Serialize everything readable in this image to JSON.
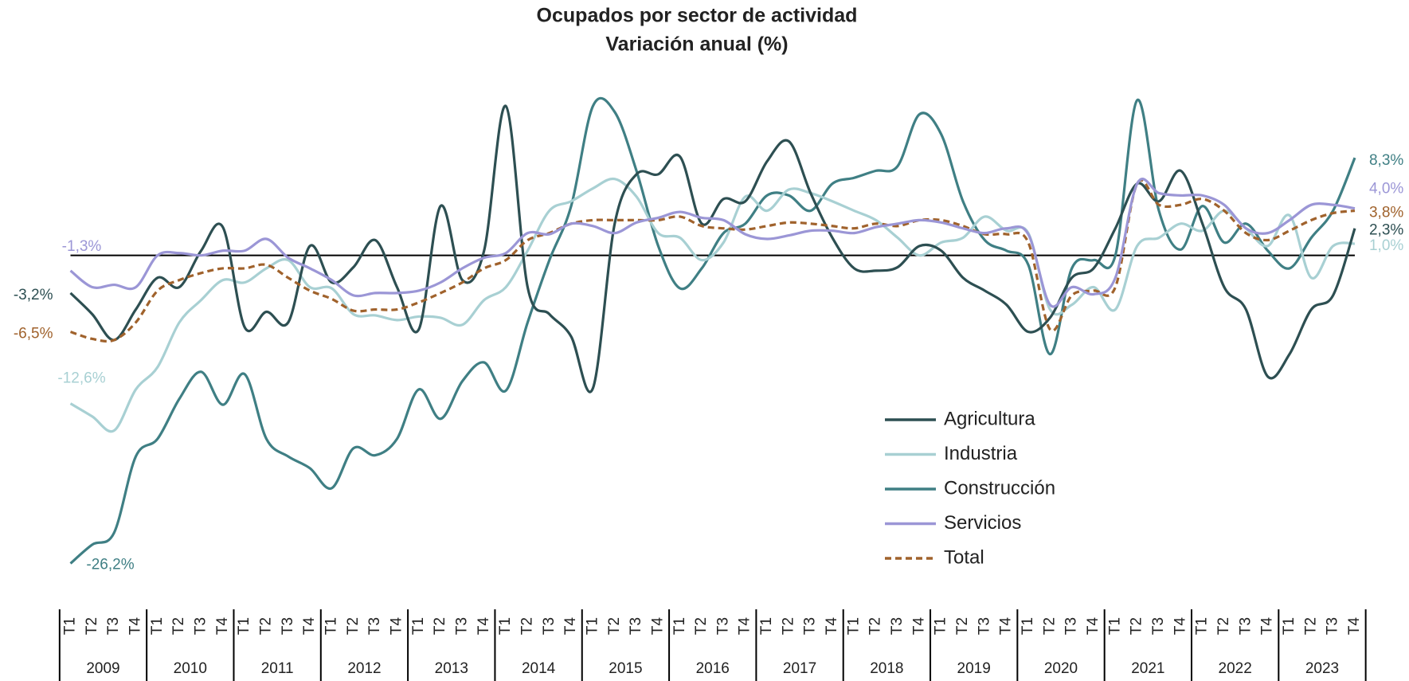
{
  "chart_data": {
    "type": "line",
    "title": "Ocupados por sector de actividad",
    "subtitle": "Variación anual (%)",
    "categories": [
      "T1",
      "T2",
      "T3",
      "T4",
      "T1",
      "T2",
      "T3",
      "T4",
      "T1",
      "T2",
      "T3",
      "T4",
      "T1",
      "T2",
      "T3",
      "T4",
      "T1",
      "T2",
      "T3",
      "T4",
      "T1",
      "T2",
      "T3",
      "T4",
      "T1",
      "T2",
      "T3",
      "T4",
      "T1",
      "T2",
      "T3",
      "T4",
      "T1",
      "T2",
      "T3",
      "T4",
      "T1",
      "T2",
      "T3",
      "T4",
      "T1",
      "T2",
      "T3",
      "T4",
      "T1",
      "T2",
      "T3",
      "T4",
      "T1",
      "T2",
      "T3",
      "T4",
      "T1",
      "T2",
      "T3",
      "T4",
      "T1",
      "T2",
      "T3",
      "T4"
    ],
    "years": [
      "2009",
      "2010",
      "2011",
      "2012",
      "2013",
      "2014",
      "2015",
      "2016",
      "2017",
      "2018",
      "2019",
      "2020",
      "2021",
      "2022",
      "2023"
    ],
    "ylim": [
      -28,
      14
    ],
    "legend": "lower right",
    "series": [
      {
        "name": "Agricultura",
        "color": "#2d4f52",
        "dashed": false,
        "values": [
          -3.2,
          -5.0,
          -7.2,
          -4.6,
          -1.9,
          -2.7,
          0.4,
          2.4,
          -6.1,
          -4.8,
          -5.7,
          0.8,
          -2.3,
          -1.0,
          1.3,
          -2.7,
          -6.3,
          4.2,
          -2.1,
          0.4,
          12.7,
          -2.7,
          -5.0,
          -6.9,
          -11.3,
          2.7,
          6.9,
          6.9,
          8.4,
          2.7,
          4.8,
          4.6,
          8.0,
          9.7,
          5.3,
          1.5,
          -1.1,
          -1.3,
          -1.0,
          0.8,
          0.4,
          -1.9,
          -3.0,
          -4.2,
          -6.5,
          -5.3,
          -1.9,
          -1.1,
          2.3,
          6.1,
          4.6,
          7.2,
          2.7,
          -2.7,
          -4.6,
          -10.3,
          -8.4,
          -4.6,
          -3.4,
          2.3
        ],
        "value_labels": [
          "-3,2%",
          null,
          null,
          null,
          null,
          null,
          null,
          null,
          null,
          null,
          null,
          null,
          null,
          null,
          null,
          null,
          null,
          null,
          null,
          null,
          null,
          null,
          null,
          null,
          null,
          null,
          null,
          null,
          null,
          null,
          null,
          null,
          null,
          null,
          null,
          null,
          null,
          null,
          null,
          null,
          null,
          null,
          null,
          null,
          null,
          null,
          null,
          null,
          null,
          null,
          null,
          null,
          null,
          null,
          null,
          null,
          null,
          null,
          null,
          "2,3%"
        ]
      },
      {
        "name": "Industria",
        "color": "#a8d0d3",
        "dashed": false,
        "values": [
          -12.6,
          -13.7,
          -14.9,
          -11.4,
          -9.5,
          -5.7,
          -3.8,
          -2.1,
          -2.3,
          -1.1,
          -0.4,
          -2.7,
          -2.8,
          -5.0,
          -5.1,
          -5.5,
          -5.2,
          -5.3,
          -5.9,
          -3.8,
          -2.7,
          0.4,
          3.8,
          4.6,
          5.7,
          6.5,
          5.0,
          1.9,
          1.5,
          -0.4,
          1.1,
          5.0,
          3.8,
          5.6,
          5.3,
          4.6,
          3.8,
          3.0,
          1.5,
          0.0,
          1.1,
          1.5,
          3.3,
          2.1,
          1.9,
          -4.6,
          -4.2,
          -2.7,
          -4.6,
          0.8,
          1.5,
          2.7,
          2.1,
          3.8,
          2.3,
          0.8,
          3.4,
          -1.9,
          0.8,
          1.0
        ],
        "value_labels": [
          "-12,6%",
          null,
          null,
          null,
          null,
          null,
          null,
          null,
          null,
          null,
          null,
          null,
          null,
          null,
          null,
          null,
          null,
          null,
          null,
          null,
          null,
          null,
          null,
          null,
          null,
          null,
          null,
          null,
          null,
          null,
          null,
          null,
          null,
          null,
          null,
          null,
          null,
          null,
          null,
          null,
          null,
          null,
          null,
          null,
          null,
          null,
          null,
          null,
          null,
          null,
          null,
          null,
          null,
          null,
          null,
          null,
          null,
          null,
          null,
          "1,0%"
        ]
      },
      {
        "name": "Construcción",
        "color": "#3f7f84",
        "dashed": false,
        "values": [
          -26.2,
          -24.6,
          -23.6,
          -17.1,
          -15.6,
          -12.2,
          -9.9,
          -12.7,
          -10.1,
          -15.6,
          -17.1,
          -18.1,
          -19.8,
          -16.4,
          -17.0,
          -15.6,
          -11.4,
          -13.9,
          -10.7,
          -9.1,
          -11.5,
          -5.7,
          -0.4,
          4.2,
          12.7,
          12.2,
          7.2,
          0.8,
          -2.8,
          -1.1,
          1.9,
          2.7,
          5.1,
          5.1,
          3.8,
          6.1,
          6.6,
          7.2,
          7.6,
          12.0,
          10.3,
          4.6,
          1.3,
          0.4,
          -0.8,
          -8.4,
          -1.1,
          -0.4,
          0.0,
          13.2,
          3.8,
          0.5,
          4.2,
          1.1,
          2.7,
          0.4,
          -1.1,
          1.5,
          3.8,
          8.3
        ],
        "value_labels": [
          "-26,2%",
          null,
          null,
          null,
          null,
          null,
          null,
          null,
          null,
          null,
          null,
          null,
          null,
          null,
          null,
          null,
          null,
          null,
          null,
          null,
          null,
          null,
          null,
          null,
          null,
          null,
          null,
          null,
          null,
          null,
          null,
          null,
          null,
          null,
          null,
          null,
          null,
          null,
          null,
          null,
          null,
          null,
          null,
          null,
          null,
          null,
          null,
          null,
          null,
          null,
          null,
          null,
          null,
          null,
          null,
          null,
          null,
          null,
          null,
          "8,3%"
        ]
      },
      {
        "name": "Servicios",
        "color": "#9b96d6",
        "dashed": false,
        "values": [
          -1.3,
          -2.7,
          -2.5,
          -2.7,
          0.0,
          0.2,
          0.0,
          0.4,
          0.4,
          1.4,
          -0.2,
          -1.1,
          -2.1,
          -3.4,
          -3.2,
          -3.2,
          -3.0,
          -2.3,
          -1.1,
          -0.2,
          0.2,
          1.9,
          1.8,
          2.7,
          2.5,
          1.9,
          2.8,
          3.2,
          3.7,
          3.2,
          3.0,
          1.8,
          1.4,
          1.7,
          2.1,
          2.1,
          1.9,
          2.4,
          2.7,
          3.0,
          2.8,
          2.3,
          1.9,
          2.3,
          1.8,
          -4.2,
          -2.7,
          -3.3,
          -1.9,
          6.1,
          5.3,
          5.1,
          5.1,
          4.3,
          2.3,
          1.9,
          3.0,
          4.3,
          4.3,
          4.0
        ],
        "value_labels": [
          "-1,3%",
          null,
          null,
          null,
          null,
          null,
          null,
          null,
          null,
          null,
          null,
          null,
          null,
          null,
          null,
          null,
          null,
          null,
          null,
          null,
          null,
          null,
          null,
          null,
          null,
          null,
          null,
          null,
          null,
          null,
          null,
          null,
          null,
          null,
          null,
          null,
          null,
          null,
          null,
          null,
          null,
          null,
          null,
          null,
          null,
          null,
          null,
          null,
          null,
          null,
          null,
          null,
          null,
          null,
          null,
          null,
          null,
          null,
          null,
          "4,0%"
        ]
      },
      {
        "name": "Total",
        "color": "#a0622c",
        "dashed": true,
        "values": [
          -6.5,
          -7.1,
          -7.2,
          -5.7,
          -3.0,
          -2.1,
          -1.5,
          -1.1,
          -1.1,
          -0.8,
          -1.9,
          -3.0,
          -3.7,
          -4.7,
          -4.6,
          -4.6,
          -4.0,
          -3.2,
          -2.3,
          -1.1,
          -0.4,
          1.3,
          1.9,
          2.7,
          3.0,
          3.0,
          3.0,
          3.0,
          3.3,
          2.5,
          2.3,
          2.2,
          2.5,
          2.8,
          2.7,
          2.5,
          2.3,
          2.7,
          2.5,
          3.0,
          3.0,
          2.5,
          1.8,
          1.8,
          1.1,
          -6.3,
          -3.4,
          -3.0,
          -2.7,
          6.1,
          4.3,
          4.3,
          4.8,
          3.8,
          1.9,
          1.3,
          2.1,
          3.0,
          3.6,
          3.8
        ],
        "value_labels": [
          "-6,5%",
          null,
          null,
          null,
          null,
          null,
          null,
          null,
          null,
          null,
          null,
          null,
          null,
          null,
          null,
          null,
          null,
          null,
          null,
          null,
          null,
          null,
          null,
          null,
          null,
          null,
          null,
          null,
          null,
          null,
          null,
          null,
          null,
          null,
          null,
          null,
          null,
          null,
          null,
          null,
          null,
          null,
          null,
          null,
          null,
          null,
          null,
          null,
          null,
          null,
          null,
          null,
          null,
          null,
          null,
          null,
          null,
          null,
          null,
          "3,8%"
        ]
      }
    ]
  }
}
